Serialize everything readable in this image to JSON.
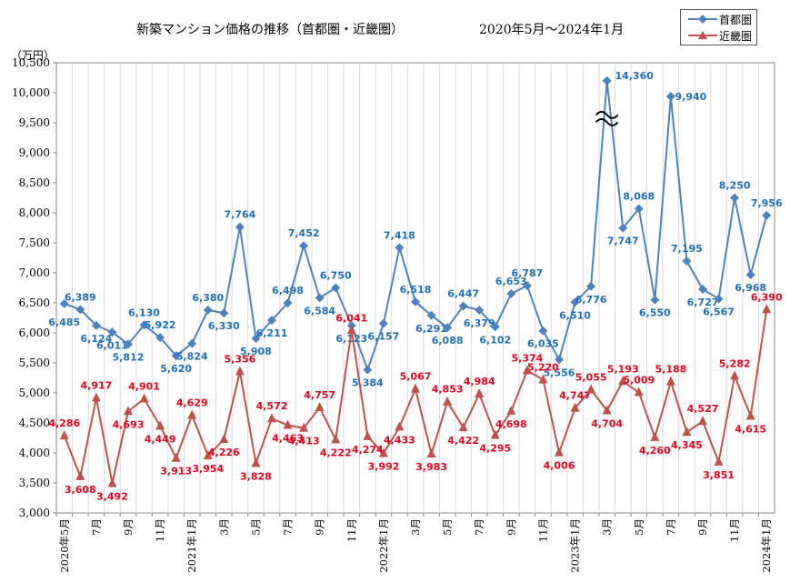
{
  "title": "新築マンション価格の推移（首都圏・近畿圏）",
  "period": "2020年5月～2024年1月",
  "unit_label": "（万円）",
  "chart_data": {
    "type": "line",
    "ylim": [
      3000,
      10500
    ],
    "y_ticks": [
      3000,
      3500,
      4000,
      4500,
      5000,
      5500,
      6000,
      6500,
      7000,
      7500,
      8000,
      8500,
      9000,
      9500,
      10000,
      10500
    ],
    "y_tick_labels": [
      "3,000",
      "3,500",
      "4,000",
      "4,500",
      "5,000",
      "5,500",
      "6,000",
      "6,500",
      "7,000",
      "7,500",
      "8,000",
      "8,500",
      "9,000",
      "9,500",
      "10,000",
      "10,500"
    ],
    "grid": "vertical",
    "legend_position": "top-right",
    "axis_break_note": "首都圏 2023年3月 value 14,360 exceeds axis (break symbol shown)",
    "x_labels": [
      "2020年5月",
      "",
      "7月",
      "",
      "9月",
      "",
      "11月",
      "",
      "2021年1月",
      "",
      "3月",
      "",
      "5月",
      "",
      "7月",
      "",
      "9月",
      "",
      "11月",
      "",
      "2022年1月",
      "",
      "3月",
      "",
      "5月",
      "",
      "7月",
      "",
      "9月",
      "",
      "11月",
      "",
      "2023年1月",
      "",
      "3月",
      "",
      "5月",
      "",
      "7月",
      "",
      "9月",
      "",
      "11月",
      "",
      "2024年1月"
    ],
    "series": [
      {
        "name": "首都圏",
        "color": "#4f81bd",
        "label_color": "#1f6fb8",
        "marker": "diamond",
        "values": [
          6485,
          6389,
          6124,
          6011,
          5812,
          6130,
          5922,
          5620,
          5824,
          6380,
          6330,
          7764,
          5908,
          6211,
          6498,
          7452,
          6584,
          6750,
          6123,
          5384,
          6157,
          7418,
          6518,
          6291,
          6088,
          6447,
          6379,
          6102,
          6653,
          6787,
          6035,
          5556,
          6510,
          6776,
          14360,
          7747,
          8068,
          6550,
          9940,
          7195,
          6727,
          6567,
          8250,
          6968,
          7956
        ],
        "labels": [
          "6,485",
          "6,389",
          "6,124",
          "6,011",
          "5,812",
          "6,130",
          "5,922",
          "5,620",
          "5,824",
          "6,380",
          "6,330",
          "7,764",
          "5,908",
          "6,211",
          "6,498",
          "7,452",
          "6,584",
          "6,750",
          "6,123",
          "5,384",
          "6,157",
          "7,418",
          "6,518",
          "6,291",
          "6,088",
          "6,447",
          "6,379",
          "6,102",
          "6,653",
          "6,787",
          "6,035",
          "5,556",
          "6,510",
          "6,776",
          "14,360",
          "7,747",
          "8,068",
          "6,550",
          "9,940",
          "7,195",
          "6,727",
          "6,567",
          "8,250",
          "6,968",
          "7,956"
        ]
      },
      {
        "name": "近畿圏",
        "color": "#c0504d",
        "label_color": "#e8001c",
        "marker": "triangle",
        "values": [
          4286,
          3608,
          4917,
          3492,
          4693,
          4901,
          4449,
          3913,
          4629,
          3954,
          4226,
          5356,
          3828,
          4572,
          4463,
          4413,
          4757,
          4222,
          6041,
          4274,
          3992,
          4433,
          5067,
          3983,
          4853,
          4422,
          4984,
          4295,
          4698,
          5374,
          5220,
          4006,
          4747,
          5055,
          4704,
          5193,
          5009,
          4260,
          5188,
          4345,
          4527,
          3851,
          5282,
          4615,
          6390
        ],
        "labels": [
          "4,286",
          "3,608",
          "4,917",
          "3,492",
          "4,693",
          "4,901",
          "4,449",
          "3,913",
          "4,629",
          "3,954",
          "4,226",
          "5,356",
          "3,828",
          "4,572",
          "4,463",
          "4,413",
          "4,757",
          "4,222",
          "6,041",
          "4,274",
          "3,992",
          "4,433",
          "5,067",
          "3,983",
          "4,853",
          "4,422",
          "4,984",
          "4,295",
          "4,698",
          "5,374",
          "5,220",
          "4,006",
          "4,747",
          "5,055",
          "4,704",
          "5,193",
          "5,009",
          "4,260",
          "5,188",
          "4,345",
          "4,527",
          "3,851",
          "5,282",
          "4,615",
          "6,390"
        ]
      }
    ]
  }
}
